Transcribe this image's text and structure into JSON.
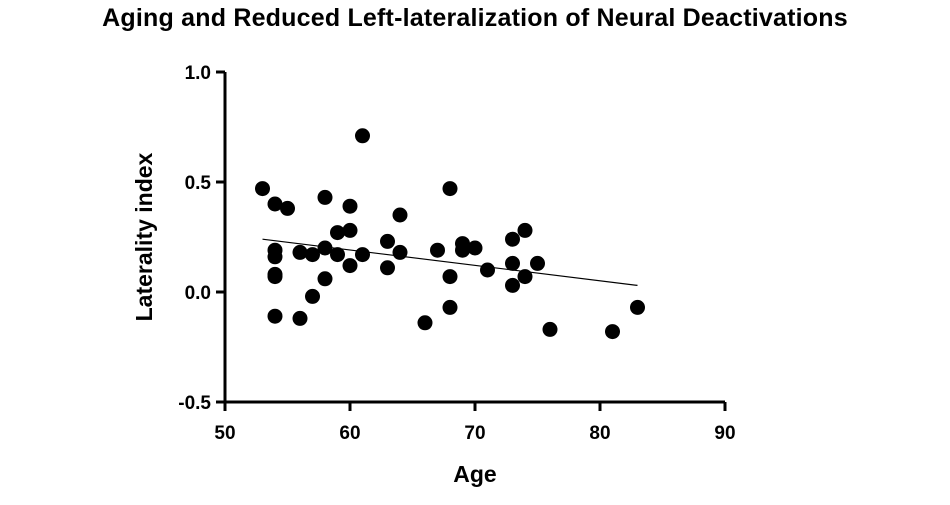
{
  "chart_data": {
    "type": "scatter",
    "title": "Aging and Reduced Left-lateralization of Neural Deactivations",
    "xlabel": "Age",
    "ylabel": "Laterality index",
    "xlim": [
      50,
      90
    ],
    "ylim": [
      -0.5,
      1.0
    ],
    "x_ticks": [
      50,
      60,
      70,
      80,
      90
    ],
    "y_ticks": [
      -0.5,
      0.0,
      0.5,
      1.0
    ],
    "x_tick_labels": [
      "50",
      "60",
      "70",
      "80",
      "90"
    ],
    "y_tick_labels": [
      "-0.5",
      "0.0",
      "0.5",
      "1.0"
    ],
    "grid": false,
    "marker_color": "#000000",
    "points": [
      {
        "x": 53,
        "y": 0.47
      },
      {
        "x": 54,
        "y": 0.4
      },
      {
        "x": 54,
        "y": 0.19
      },
      {
        "x": 54,
        "y": 0.16
      },
      {
        "x": 54,
        "y": 0.08
      },
      {
        "x": 54,
        "y": 0.07
      },
      {
        "x": 54,
        "y": -0.11
      },
      {
        "x": 55,
        "y": 0.38
      },
      {
        "x": 56,
        "y": 0.18
      },
      {
        "x": 56,
        "y": -0.12
      },
      {
        "x": 57,
        "y": 0.17
      },
      {
        "x": 57,
        "y": -0.02
      },
      {
        "x": 58,
        "y": 0.43
      },
      {
        "x": 58,
        "y": 0.2
      },
      {
        "x": 58,
        "y": 0.06
      },
      {
        "x": 59,
        "y": 0.27
      },
      {
        "x": 59,
        "y": 0.17
      },
      {
        "x": 60,
        "y": 0.39
      },
      {
        "x": 60,
        "y": 0.28
      },
      {
        "x": 60,
        "y": 0.12
      },
      {
        "x": 61,
        "y": 0.71
      },
      {
        "x": 61,
        "y": 0.17
      },
      {
        "x": 63,
        "y": 0.23
      },
      {
        "x": 63,
        "y": 0.11
      },
      {
        "x": 64,
        "y": 0.35
      },
      {
        "x": 64,
        "y": 0.18
      },
      {
        "x": 66,
        "y": -0.14
      },
      {
        "x": 67,
        "y": 0.19
      },
      {
        "x": 68,
        "y": 0.47
      },
      {
        "x": 68,
        "y": 0.07
      },
      {
        "x": 68,
        "y": -0.07
      },
      {
        "x": 69,
        "y": 0.22
      },
      {
        "x": 69,
        "y": 0.19
      },
      {
        "x": 70,
        "y": 0.2
      },
      {
        "x": 71,
        "y": 0.1
      },
      {
        "x": 73,
        "y": 0.24
      },
      {
        "x": 73,
        "y": 0.13
      },
      {
        "x": 73,
        "y": 0.03
      },
      {
        "x": 74,
        "y": 0.28
      },
      {
        "x": 74,
        "y": 0.07
      },
      {
        "x": 75,
        "y": 0.13
      },
      {
        "x": 76,
        "y": -0.17
      },
      {
        "x": 81,
        "y": -0.18
      },
      {
        "x": 83,
        "y": -0.07
      }
    ],
    "trend_line": {
      "x": [
        53,
        83
      ],
      "y": [
        0.24,
        0.03
      ]
    }
  }
}
